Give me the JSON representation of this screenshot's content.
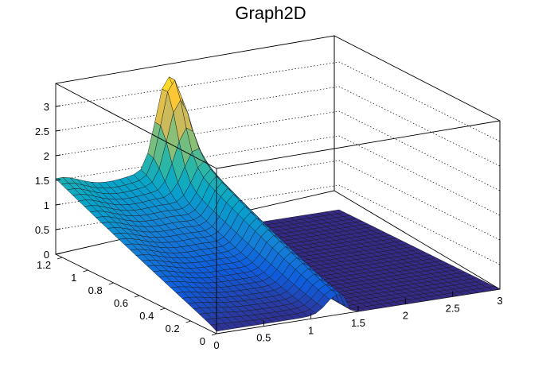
{
  "title": "Graph2D",
  "chart_data": {
    "type": "surface",
    "title": "Graph2D",
    "x_range": [
      0,
      3
    ],
    "y_range": [
      0,
      1.25
    ],
    "z_range": [
      0,
      3.4
    ],
    "x_ticks": [
      "0",
      "0.5",
      "1",
      "1.5",
      "2",
      "2.5",
      "3"
    ],
    "y_ticks": [
      "0",
      "0.2",
      "0.4",
      "0.6",
      "0.8",
      "1",
      "1.2"
    ],
    "z_ticks": [
      "0",
      "0.5",
      "1",
      "1.5",
      "2",
      "2.5",
      "3"
    ],
    "grid": "dotted lines on back walls",
    "colormap": "viridis",
    "approx_shape": "surface approx 1.9 at x=0,y=1.25 rising to a peak of approx 3.4 near x=1.15,y=1.2; a plateau approx 1.5-2.0 along x=1.0-1.35; drops to 0 for x > 1.45 at all y"
  },
  "colors": {
    "palette": [
      "#352a87",
      "#0f5cdd",
      "#1481d6",
      "#06a4ca",
      "#2eb7a4",
      "#87bf77",
      "#d1bb59",
      "#fec832",
      "#f9fb0e"
    ]
  }
}
